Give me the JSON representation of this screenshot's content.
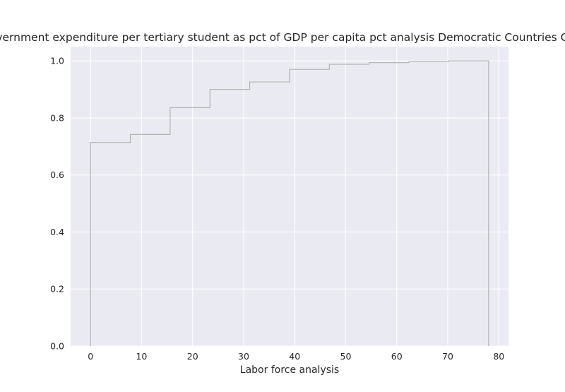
{
  "chart_data": {
    "type": "step",
    "title": "Government expenditure per tertiary student as pct of GDP per capita pct analysis Democratic Countries CDF Al",
    "xlabel": "Labor force analysis",
    "ylabel": "",
    "xlim": [
      -3.9,
      81.9
    ],
    "ylim": [
      0,
      1.05
    ],
    "x_ticks": [
      0,
      10,
      20,
      30,
      40,
      50,
      60,
      70,
      80
    ],
    "x_tick_labels": [
      "0",
      "10",
      "20",
      "30",
      "40",
      "50",
      "60",
      "70",
      "80"
    ],
    "y_ticks": [
      0.0,
      0.2,
      0.4,
      0.6,
      0.8,
      1.0
    ],
    "y_tick_labels": [
      "0.0",
      "0.2",
      "0.4",
      "0.6",
      "0.8",
      "1.0"
    ],
    "grid": true,
    "series": [
      {
        "x": [
          0,
          7.8,
          15.6,
          23.4,
          31.2,
          39.0,
          46.8,
          54.6,
          62.4,
          70.2,
          78.0
        ],
        "y": [
          0.714,
          0.742,
          0.836,
          0.9,
          0.926,
          0.97,
          0.988,
          0.994,
          0.997,
          1.0,
          1.0
        ]
      }
    ],
    "colors": {
      "step_line": "#b3b3b3",
      "plot_background": "#eaeaf2",
      "grid": "#ffffff"
    }
  }
}
